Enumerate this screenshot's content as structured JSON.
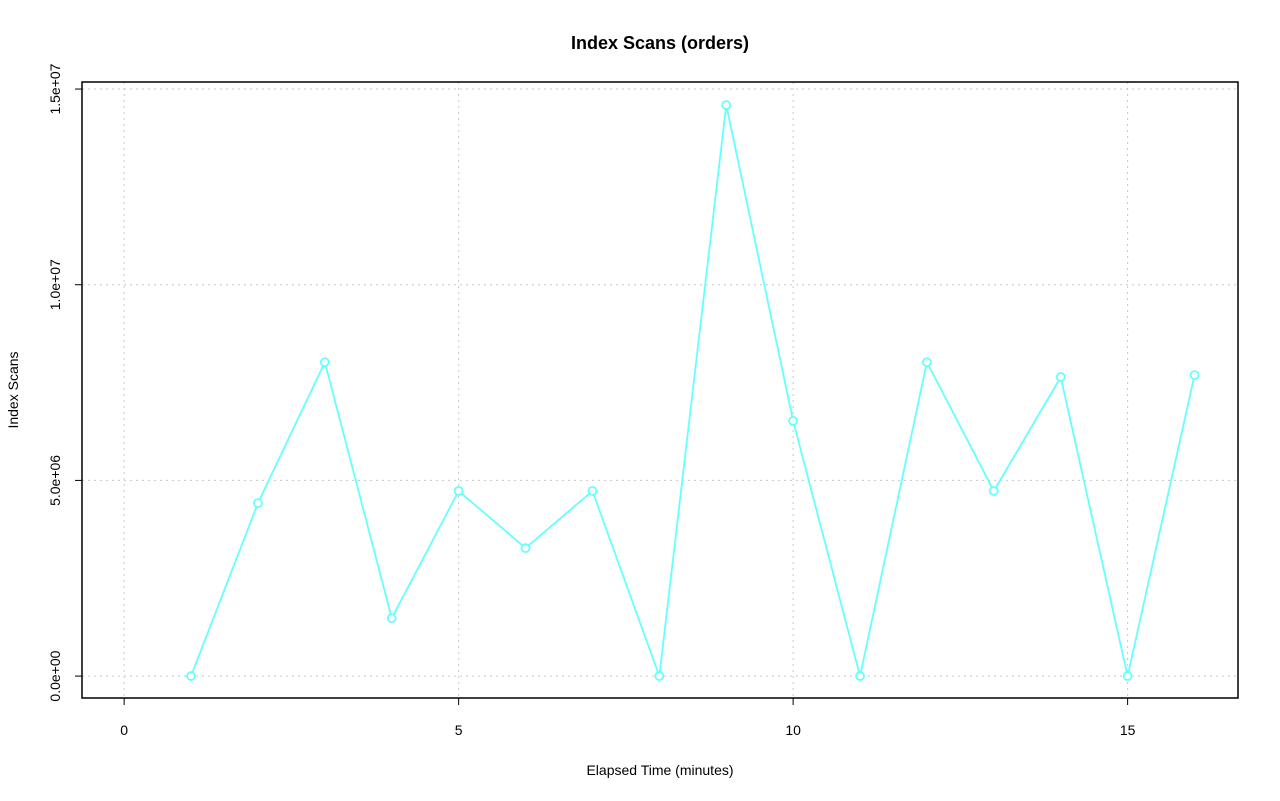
{
  "chart_data": {
    "type": "line",
    "title": "Index Scans (orders)",
    "x_label": "Elapsed Time (minutes)",
    "y_label": "Index Scans",
    "x": [
      1,
      2,
      3,
      4,
      5,
      6,
      7,
      8,
      9,
      10,
      11,
      12,
      13,
      14,
      15,
      16
    ],
    "series": [
      {
        "name": "Index Scans",
        "color": "#66ffff",
        "values": [
          0,
          4420000,
          8020000,
          1480000,
          4730000,
          3270000,
          4730000,
          0,
          14590000,
          6520000,
          0,
          8020000,
          4730000,
          7640000,
          0,
          7690000
        ]
      }
    ],
    "xlim": [
      -0.63,
      16.65
    ],
    "ylim": [
      -560000,
      15180000
    ],
    "xticks": [
      0,
      5,
      10,
      15
    ],
    "yticks": [
      {
        "value": 0,
        "label": "0.0e+00"
      },
      {
        "value": 5000000,
        "label": "5.0e+06"
      },
      {
        "value": 10000000,
        "label": "1.0e+07"
      },
      {
        "value": 15000000,
        "label": "1.5e+07"
      }
    ],
    "grid": true
  }
}
